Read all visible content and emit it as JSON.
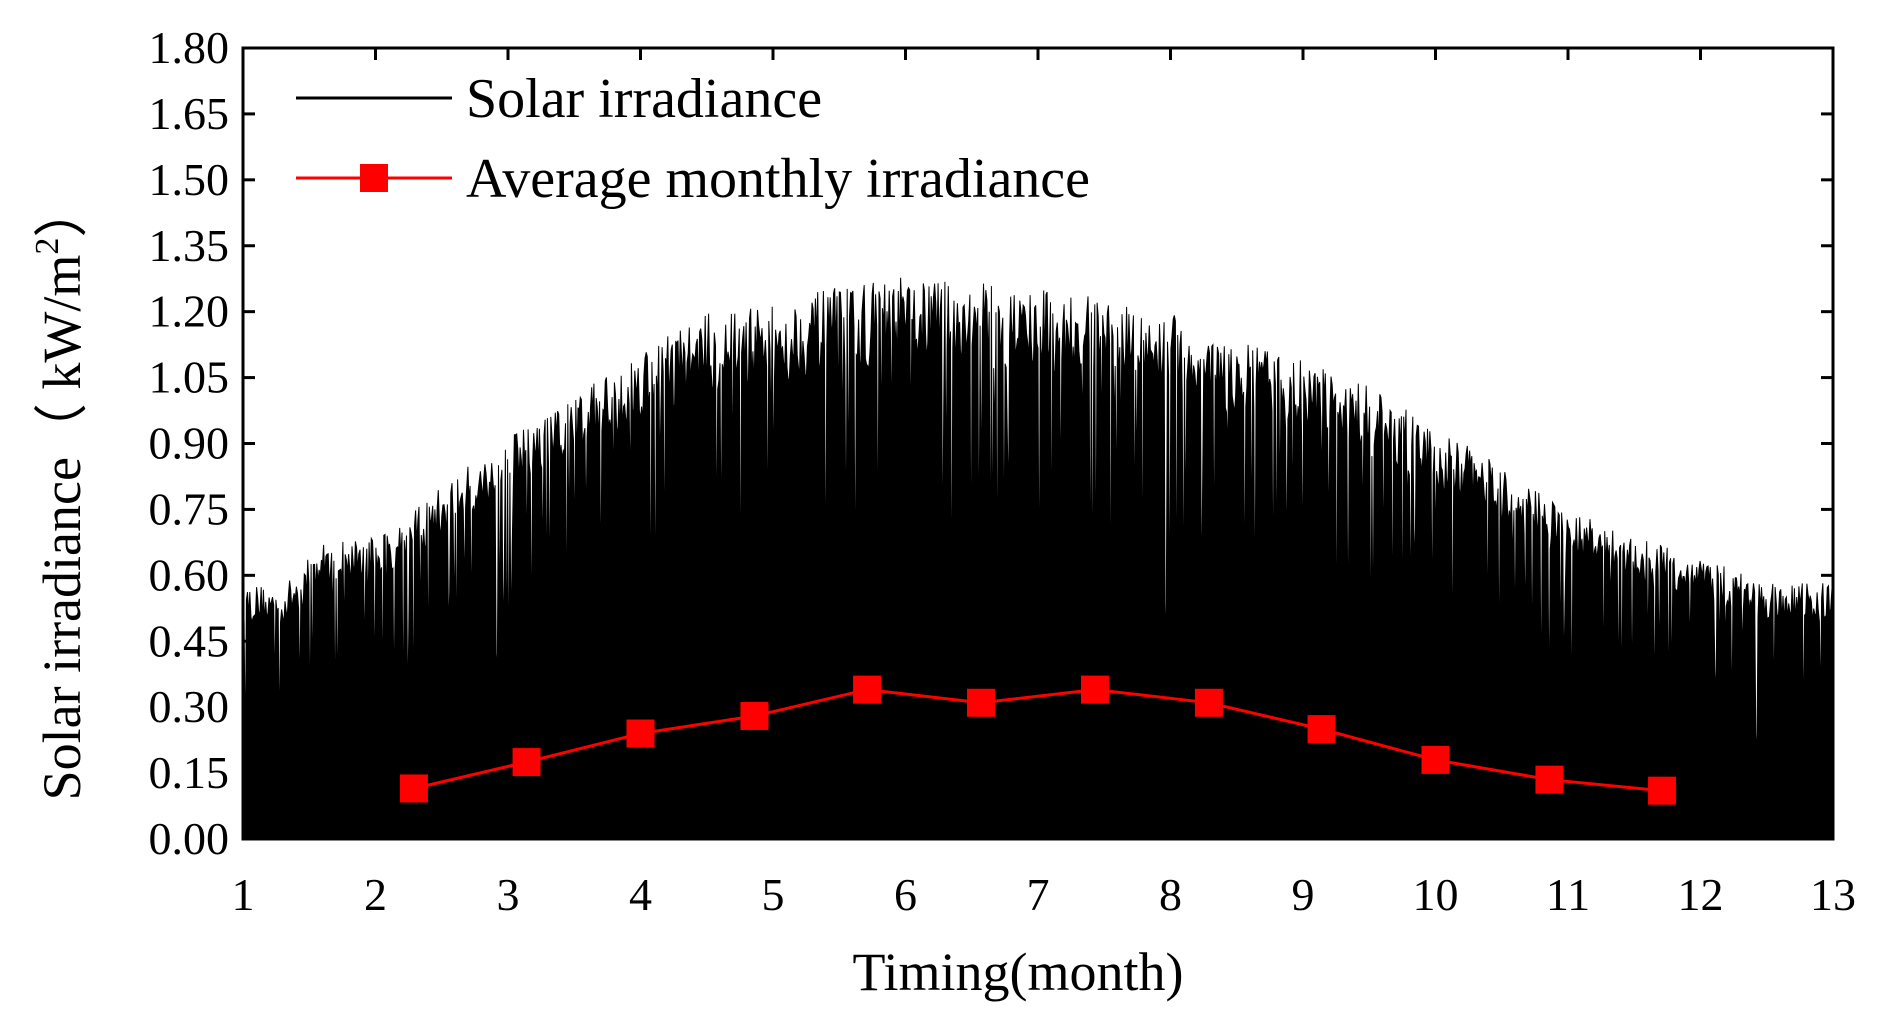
{
  "chart_data": {
    "type": "line",
    "xlabel": "Timing(month)",
    "ylabel_main": "Solar irradiance（ kW/m",
    "ylabel_sup": "2",
    "ylabel_close": "）",
    "xlim": [
      1,
      13
    ],
    "ylim": [
      0,
      1.8
    ],
    "x_ticks": [
      1,
      2,
      3,
      4,
      5,
      6,
      7,
      8,
      9,
      10,
      11,
      12,
      13
    ],
    "y_ticks": [
      0.0,
      0.15,
      0.3,
      0.45,
      0.6,
      0.75,
      0.9,
      1.05,
      1.2,
      1.35,
      1.5,
      1.65,
      1.8
    ],
    "y_tick_labels": [
      "0.00",
      "0.15",
      "0.30",
      "0.45",
      "0.60",
      "0.75",
      "0.90",
      "1.05",
      "1.20",
      "1.35",
      "1.50",
      "1.65",
      "1.80"
    ],
    "legend": {
      "position": "top-left",
      "entries": [
        "Solar irradiance",
        "Average monthly irradiance"
      ]
    },
    "series": [
      {
        "name": "Solar irradiance",
        "color": "#000000",
        "style": "dense-hourly",
        "envelope": {
          "x": [
            1.0,
            1.3,
            1.6,
            2.0,
            2.3,
            2.6,
            3.0,
            3.5,
            4.0,
            4.5,
            5.0,
            5.5,
            6.0,
            6.5,
            7.0,
            7.5,
            8.0,
            8.5,
            9.0,
            9.5,
            10.0,
            10.5,
            11.0,
            11.5,
            12.0,
            12.5,
            13.0
          ],
          "peak": [
            0.56,
            0.55,
            0.65,
            0.67,
            0.72,
            0.8,
            0.88,
            0.97,
            1.08,
            1.15,
            1.17,
            1.21,
            1.23,
            1.22,
            1.21,
            1.18,
            1.15,
            1.09,
            1.05,
            0.99,
            0.9,
            0.82,
            0.72,
            0.66,
            0.62,
            0.56,
            0.56
          ]
        }
      },
      {
        "name": "Average monthly irradiance",
        "color": "#ff0000",
        "marker": "square",
        "x": [
          2.29,
          3.14,
          4.0,
          4.86,
          5.71,
          6.57,
          7.43,
          8.29,
          9.14,
          10.0,
          10.86,
          11.71
        ],
        "values": [
          0.115,
          0.175,
          0.24,
          0.28,
          0.34,
          0.31,
          0.34,
          0.31,
          0.25,
          0.18,
          0.135,
          0.11
        ]
      }
    ]
  }
}
